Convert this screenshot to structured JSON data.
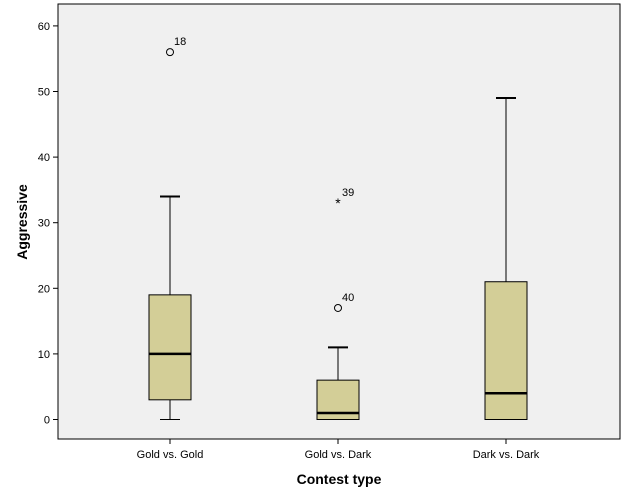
{
  "chart_data": {
    "type": "boxplot",
    "title": "",
    "xlabel": "Contest type",
    "ylabel": "Aggressive",
    "ylim": [
      -3,
      63
    ],
    "yticks": [
      0,
      10,
      20,
      30,
      40,
      50,
      60
    ],
    "grid": false,
    "categories": [
      "Gold vs. Gold",
      "Gold vs. Dark",
      "Dark vs. Dark"
    ],
    "boxes": [
      {
        "category": "Gold vs. Gold",
        "whisker_low": 0,
        "q1": 3,
        "median": 10,
        "q3": 19,
        "whisker_high": 34,
        "outliers": [
          {
            "value": 56,
            "label": "18",
            "marker": "circle"
          }
        ]
      },
      {
        "category": "Gold vs. Dark",
        "whisker_low": 0,
        "q1": 0,
        "median": 1,
        "q3": 6,
        "whisker_high": 11,
        "outliers": [
          {
            "value": 33,
            "label": "39",
            "marker": "star"
          },
          {
            "value": 17,
            "label": "40",
            "marker": "circle"
          }
        ]
      },
      {
        "category": "Dark vs. Dark",
        "whisker_low": 0,
        "q1": 0,
        "median": 4,
        "q3": 21,
        "whisker_high": 49,
        "outliers": []
      }
    ],
    "colors": {
      "plot_background": "#f0f0f0",
      "box_fill": "#d3ce97",
      "stroke": "#000000"
    }
  }
}
